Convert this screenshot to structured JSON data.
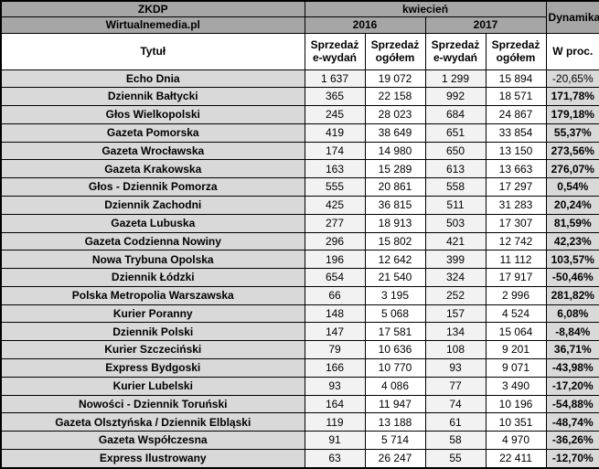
{
  "header": {
    "org": "ZKDP",
    "source": "Wirtualnemedia.pl",
    "month": "kwiecień",
    "years": [
      "2016",
      "2017"
    ],
    "dynamics_label": "Dynamika",
    "title_label": "Tytuł",
    "sales_e_label": "Sprzedaż e-wydań",
    "sales_total_label": "Sprzedaż ogółem",
    "percent_label": "W proc."
  },
  "colors": {
    "header_bg": "#a6a6a6",
    "row_label_bg": "#d9d9d9",
    "e_editions_col_bg": "#f2f2f2",
    "total_col_bg": "#ffffff",
    "percent_col_bg": "#d9d9d9",
    "border": "#000000",
    "text": "#000000"
  },
  "chart_data": {
    "type": "table",
    "columns": [
      "Tytuł",
      "Sprzedaż e-wydań 2016",
      "Sprzedaż ogółem 2016",
      "Sprzedaż e-wydań 2017",
      "Sprzedaż ogółem 2017",
      "Dynamika W proc."
    ],
    "rows": [
      {
        "title": "Echo Dnia",
        "e2016": 1637,
        "total2016": 19072,
        "e2017": 1299,
        "total2017": 15894,
        "dynamics_pct": -20.65,
        "dynamics_bold": false
      },
      {
        "title": "Dziennik Bałtycki",
        "e2016": 365,
        "total2016": 22158,
        "e2017": 992,
        "total2017": 18571,
        "dynamics_pct": 171.78,
        "dynamics_bold": true
      },
      {
        "title": "Głos Wielkopolski",
        "e2016": 245,
        "total2016": 28023,
        "e2017": 684,
        "total2017": 24867,
        "dynamics_pct": 179.18,
        "dynamics_bold": true
      },
      {
        "title": "Gazeta Pomorska",
        "e2016": 419,
        "total2016": 38649,
        "e2017": 651,
        "total2017": 33854,
        "dynamics_pct": 55.37,
        "dynamics_bold": true
      },
      {
        "title": "Gazeta Wrocławska",
        "e2016": 174,
        "total2016": 14980,
        "e2017": 650,
        "total2017": 13150,
        "dynamics_pct": 273.56,
        "dynamics_bold": true
      },
      {
        "title": "Gazeta Krakowska",
        "e2016": 163,
        "total2016": 15289,
        "e2017": 613,
        "total2017": 13663,
        "dynamics_pct": 276.07,
        "dynamics_bold": true
      },
      {
        "title": "Głos - Dziennik Pomorza",
        "e2016": 555,
        "total2016": 20861,
        "e2017": 558,
        "total2017": 17297,
        "dynamics_pct": 0.54,
        "dynamics_bold": true
      },
      {
        "title": "Dziennik Zachodni",
        "e2016": 425,
        "total2016": 36815,
        "e2017": 511,
        "total2017": 31283,
        "dynamics_pct": 20.24,
        "dynamics_bold": true
      },
      {
        "title": "Gazeta Lubuska",
        "e2016": 277,
        "total2016": 18913,
        "e2017": 503,
        "total2017": 17307,
        "dynamics_pct": 81.59,
        "dynamics_bold": true
      },
      {
        "title": "Gazeta Codzienna Nowiny",
        "e2016": 296,
        "total2016": 15802,
        "e2017": 421,
        "total2017": 12742,
        "dynamics_pct": 42.23,
        "dynamics_bold": true
      },
      {
        "title": "Nowa Trybuna Opolska",
        "e2016": 196,
        "total2016": 12642,
        "e2017": 399,
        "total2017": 11112,
        "dynamics_pct": 103.57,
        "dynamics_bold": true
      },
      {
        "title": "Dziennik Łódzki",
        "e2016": 654,
        "total2016": 21540,
        "e2017": 324,
        "total2017": 17917,
        "dynamics_pct": -50.46,
        "dynamics_bold": true
      },
      {
        "title": "Polska Metropolia Warszawska",
        "e2016": 66,
        "total2016": 3195,
        "e2017": 252,
        "total2017": 2996,
        "dynamics_pct": 281.82,
        "dynamics_bold": true
      },
      {
        "title": "Kurier Poranny",
        "e2016": 148,
        "total2016": 5068,
        "e2017": 157,
        "total2017": 4524,
        "dynamics_pct": 6.08,
        "dynamics_bold": true
      },
      {
        "title": "Dziennik Polski",
        "e2016": 147,
        "total2016": 17581,
        "e2017": 134,
        "total2017": 15064,
        "dynamics_pct": -8.84,
        "dynamics_bold": true
      },
      {
        "title": "Kurier Szczeciński",
        "e2016": 79,
        "total2016": 10636,
        "e2017": 108,
        "total2017": 9201,
        "dynamics_pct": 36.71,
        "dynamics_bold": true
      },
      {
        "title": "Express Bydgoski",
        "e2016": 166,
        "total2016": 10770,
        "e2017": 93,
        "total2017": 9071,
        "dynamics_pct": -43.98,
        "dynamics_bold": true
      },
      {
        "title": "Kurier Lubelski",
        "e2016": 93,
        "total2016": 4086,
        "e2017": 77,
        "total2017": 3490,
        "dynamics_pct": -17.2,
        "dynamics_bold": true
      },
      {
        "title": "Nowości - Dziennik Toruński",
        "e2016": 164,
        "total2016": 11947,
        "e2017": 74,
        "total2017": 10196,
        "dynamics_pct": -54.88,
        "dynamics_bold": true
      },
      {
        "title": "Gazeta Olsztyńska / Dziennik Elbląski",
        "e2016": 119,
        "total2016": 13188,
        "e2017": 61,
        "total2017": 10351,
        "dynamics_pct": -48.74,
        "dynamics_bold": true
      },
      {
        "title": "Gazeta Współczesna",
        "e2016": 91,
        "total2016": 5714,
        "e2017": 58,
        "total2017": 4970,
        "dynamics_pct": -36.26,
        "dynamics_bold": true
      },
      {
        "title": "Express Ilustrowany",
        "e2016": 63,
        "total2016": 26247,
        "e2017": 55,
        "total2017": 22411,
        "dynamics_pct": -12.7,
        "dynamics_bold": true
      }
    ]
  }
}
